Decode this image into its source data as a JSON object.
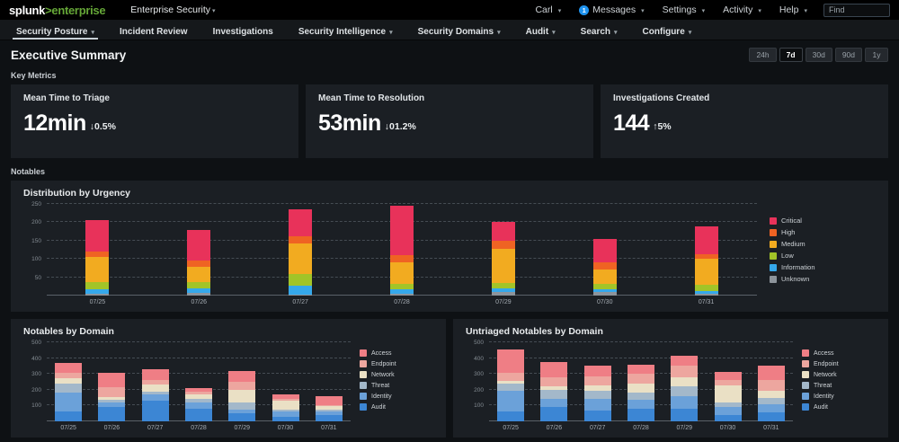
{
  "topbar": {
    "logo": {
      "brand": "splunk",
      "gt": ">",
      "product": "enterprise"
    },
    "app_selector": "Enterprise Security",
    "menus": [
      {
        "label": "Carl"
      },
      {
        "label": "Messages",
        "badge": "1"
      },
      {
        "label": "Settings"
      },
      {
        "label": "Activity"
      },
      {
        "label": "Help"
      }
    ],
    "find_placeholder": "Find"
  },
  "navbar": {
    "items": [
      {
        "label": "Security Posture",
        "caret": true,
        "active": true
      },
      {
        "label": "Incident Review",
        "caret": false,
        "active": false
      },
      {
        "label": "Investigations",
        "caret": false,
        "active": false
      },
      {
        "label": "Security Intelligence",
        "caret": true,
        "active": false
      },
      {
        "label": "Security Domains",
        "caret": true,
        "active": false
      },
      {
        "label": "Audit",
        "caret": true,
        "active": false
      },
      {
        "label": "Search",
        "caret": true,
        "active": false
      },
      {
        "label": "Configure",
        "caret": true,
        "active": false
      }
    ]
  },
  "page": {
    "title": "Executive Summary",
    "time_ranges": [
      "24h",
      "7d",
      "30d",
      "90d",
      "1y"
    ],
    "selected_range": "7d",
    "sections": {
      "key_metrics": "Key Metrics",
      "notables": "Notables"
    }
  },
  "metrics": [
    {
      "title": "Mean Time to Triage",
      "value": "12min",
      "delta": "↓0.5%"
    },
    {
      "title": "Mean Time to Resolution",
      "value": "53min",
      "delta": "↓01.2%"
    },
    {
      "title": "Investigations Created",
      "value": "144",
      "delta": "↑5%"
    }
  ],
  "chart_data": [
    {
      "type": "bar",
      "stacked": true,
      "title": "Distribution by Urgency",
      "categories": [
        "07/25",
        "07/26",
        "07/27",
        "07/28",
        "07/29",
        "07/30",
        "07/31"
      ],
      "series": [
        {
          "name": "Critical",
          "color": "#e8325a",
          "values": [
            85,
            85,
            72,
            135,
            51,
            63,
            76
          ]
        },
        {
          "name": "High",
          "color": "#ef6323",
          "values": [
            14,
            16,
            21,
            19,
            22,
            22,
            13
          ]
        },
        {
          "name": "Medium",
          "color": "#f2ab20",
          "values": [
            70,
            42,
            82,
            58,
            92,
            38,
            72
          ]
        },
        {
          "name": "Low",
          "color": "#a2c428",
          "values": [
            18,
            18,
            32,
            17,
            16,
            15,
            16
          ]
        },
        {
          "name": "Information",
          "color": "#35a8eb",
          "values": [
            13,
            12,
            25,
            12,
            8,
            8,
            9
          ]
        },
        {
          "name": "Unknown",
          "color": "#8d949b",
          "values": [
            5,
            7,
            3,
            4,
            11,
            9,
            4
          ]
        }
      ],
      "xlabel": "",
      "ylabel": "",
      "ylim": [
        0,
        250
      ],
      "yticks": [
        50,
        100,
        150,
        200,
        250
      ],
      "grid": "dashed",
      "legend_position": "right"
    },
    {
      "type": "bar",
      "stacked": true,
      "title": "Notables by Domain",
      "categories": [
        "07/25",
        "07/26",
        "07/27",
        "07/28",
        "07/29",
        "07/30",
        "07/31"
      ],
      "series": [
        {
          "name": "Access",
          "color": "#ef7e85",
          "values": [
            65,
            90,
            70,
            20,
            70,
            25,
            55
          ]
        },
        {
          "name": "Endpoint",
          "color": "#eda69f",
          "values": [
            30,
            60,
            25,
            20,
            50,
            15,
            10
          ]
        },
        {
          "name": "Network",
          "color": "#eae0c5",
          "values": [
            35,
            20,
            45,
            25,
            80,
            55,
            20
          ]
        },
        {
          "name": "Threat",
          "color": "#a3b8ca",
          "values": [
            60,
            15,
            20,
            25,
            45,
            15,
            10
          ]
        },
        {
          "name": "Identity",
          "color": "#6ba1d9",
          "values": [
            120,
            30,
            40,
            40,
            25,
            30,
            25
          ]
        },
        {
          "name": "Audit",
          "color": "#3c86d4",
          "values": [
            60,
            90,
            130,
            80,
            50,
            30,
            40
          ]
        }
      ],
      "xlabel": "",
      "ylabel": "",
      "ylim": [
        0,
        500
      ],
      "yticks": [
        100,
        200,
        300,
        400,
        500
      ],
      "grid": "dashed",
      "legend_position": "right"
    },
    {
      "type": "bar",
      "stacked": true,
      "title": "Untriaged Notables by Domain",
      "categories": [
        "07/25",
        "07/26",
        "07/27",
        "07/28",
        "07/29",
        "07/30",
        "07/31"
      ],
      "series": [
        {
          "name": "Access",
          "color": "#ef7e85",
          "values": [
            145,
            95,
            70,
            60,
            60,
            50,
            95
          ]
        },
        {
          "name": "Endpoint",
          "color": "#eda69f",
          "values": [
            55,
            60,
            55,
            60,
            75,
            30,
            65
          ]
        },
        {
          "name": "Network",
          "color": "#eae0c5",
          "values": [
            15,
            20,
            35,
            60,
            60,
            110,
            45
          ]
        },
        {
          "name": "Threat",
          "color": "#a3b8ca",
          "values": [
            45,
            60,
            55,
            45,
            60,
            30,
            40
          ]
        },
        {
          "name": "Identity",
          "color": "#6ba1d9",
          "values": [
            135,
            50,
            70,
            55,
            80,
            50,
            55
          ]
        },
        {
          "name": "Audit",
          "color": "#3c86d4",
          "values": [
            60,
            90,
            70,
            80,
            80,
            40,
            55
          ]
        }
      ],
      "xlabel": "",
      "ylabel": "",
      "ylim": [
        0,
        500
      ],
      "yticks": [
        100,
        200,
        300,
        400,
        500
      ],
      "grid": "dashed",
      "legend_position": "right"
    }
  ],
  "colors": {
    "brand_green": "#65a637",
    "badge_blue": "#1e93ee",
    "panel_bg": "#1b1f24",
    "page_bg": "#0e1114"
  }
}
